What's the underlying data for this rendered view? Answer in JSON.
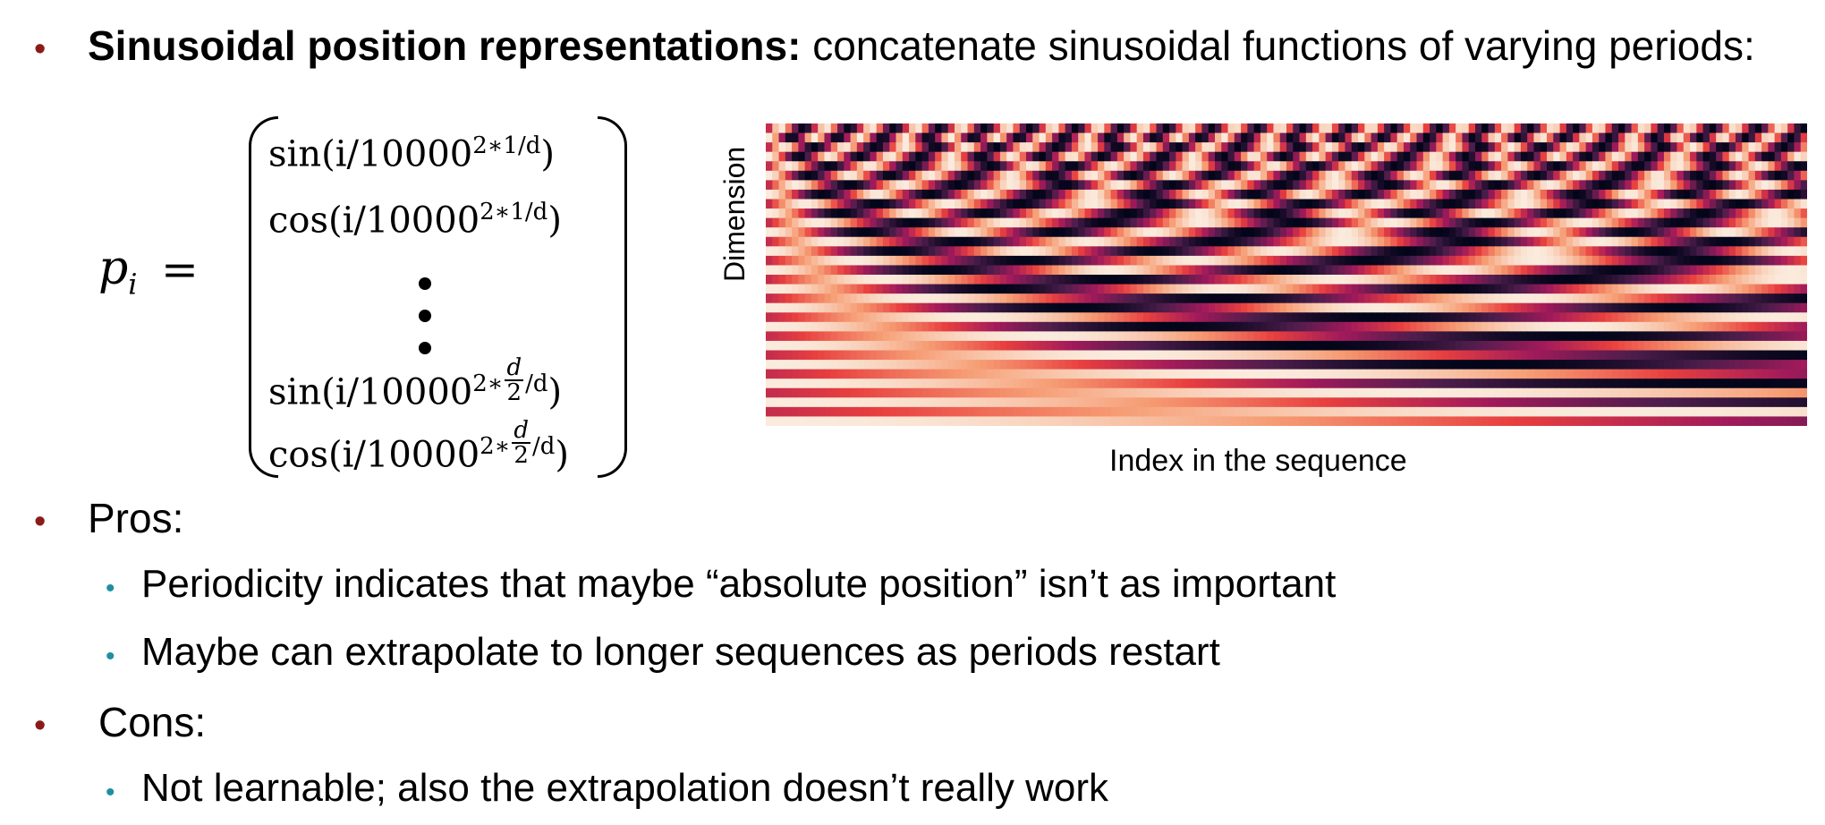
{
  "bullets": {
    "main": {
      "bold": "Sinusoidal position representations:",
      "rest": " concatenate sinusoidal functions of varying periods:"
    },
    "pros": {
      "label": "Pros:",
      "items": [
        "Periodicity indicates that maybe “absolute position” isn’t as important",
        "Maybe can extrapolate to longer sequences as periods restart"
      ]
    },
    "cons": {
      "label": "Cons:",
      "items": [
        "Not learnable; also the extrapolation doesn’t really work"
      ]
    }
  },
  "formula": {
    "lhs_var": "p",
    "lhs_sub": "i",
    "equals": "=",
    "entries": [
      {
        "fn": "sin",
        "arg": "(i/10000",
        "exp": "2∗1/d",
        "close": ")"
      },
      {
        "fn": "cos",
        "arg": "(i/10000",
        "exp": "2∗1/d",
        "close": ")"
      },
      {
        "fn": "sin",
        "arg": "(i/10000",
        "exp_pre": "2∗",
        "frac_num": "d",
        "frac_den": "2",
        "exp_post": "/d",
        "close": ")"
      },
      {
        "fn": "cos",
        "arg": "(i/10000",
        "exp_pre": "2∗",
        "frac_num": "d",
        "frac_den": "2",
        "exp_post": "/d",
        "close": ")"
      }
    ]
  },
  "chart_data": {
    "type": "heatmap",
    "title": "",
    "xlabel": "Index in the sequence",
    "ylabel": "Dimension",
    "grid": false,
    "legend": "none",
    "colormap": [
      "#03051a",
      "#4c1d4b",
      "#a11a5b",
      "#e83f3f",
      "#f69c73",
      "#faebdd"
    ]
  },
  "colors": {
    "bullet_level1": "#8b1a1a",
    "bullet_level2": "#1f8fa0"
  }
}
